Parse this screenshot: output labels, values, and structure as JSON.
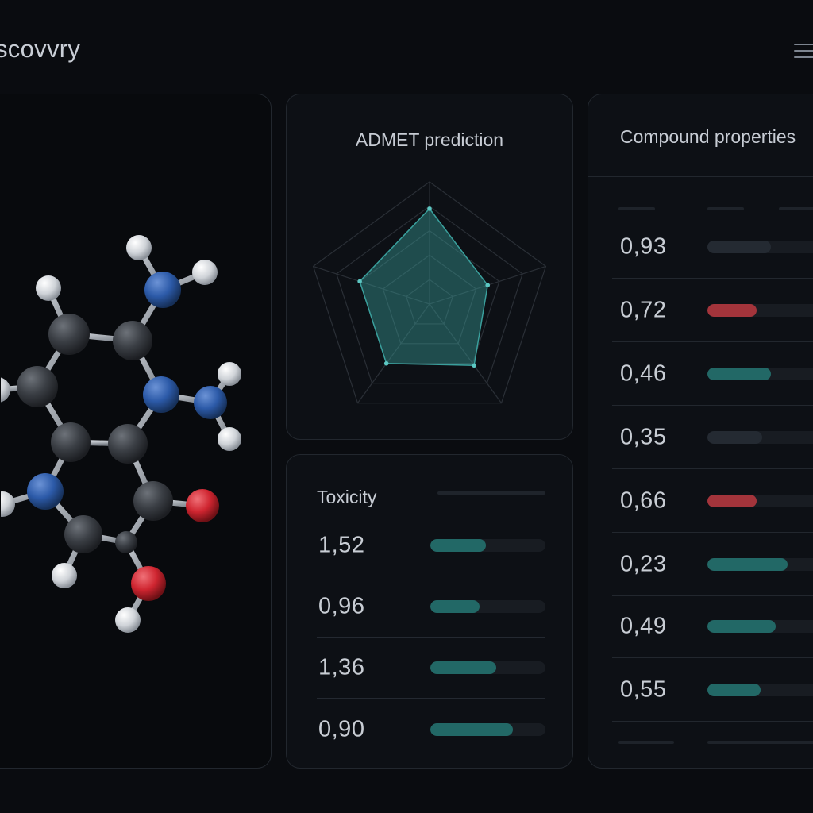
{
  "app": {
    "title": "scovvry"
  },
  "header": {
    "menu_icon": "hamburger-menu-icon"
  },
  "admet": {
    "title": "ADMET prediction",
    "radar_levels": 5,
    "values": [
      0.78,
      0.5,
      0.62,
      0.6,
      0.6
    ],
    "fill_color": "#3a9f9c"
  },
  "toxicity": {
    "title": "Toxicity",
    "rows": [
      {
        "value": "1,52",
        "level": 0.48,
        "color": "#226866"
      },
      {
        "value": "0,96",
        "level": 0.43,
        "color": "#226866"
      },
      {
        "value": "1,36",
        "level": 0.57,
        "color": "#226866"
      },
      {
        "value": "0,90",
        "level": 0.72,
        "color": "#226866"
      }
    ]
  },
  "properties": {
    "title": "Compound properties",
    "rows": [
      {
        "value": "0,93",
        "level": 0.5,
        "color": "#242a32"
      },
      {
        "value": "0,72",
        "level": 0.39,
        "color": "#a3343b"
      },
      {
        "value": "0,46",
        "level": 0.5,
        "color": "#226866"
      },
      {
        "value": "0,35",
        "level": 0.43,
        "color": "#242a32"
      },
      {
        "value": "0,66",
        "level": 0.39,
        "color": "#a3343b"
      },
      {
        "value": "0,23",
        "level": 0.63,
        "color": "#226866"
      },
      {
        "value": "0,49",
        "level": 0.54,
        "color": "#226866"
      },
      {
        "value": "0,55",
        "level": 0.42,
        "color": "#226866"
      }
    ]
  },
  "colors": {
    "background": "#0a0c10",
    "panel": "#0d1015",
    "carbon": "#3c4046",
    "nitrogen": "#2f5fb0",
    "oxygen": "#d0262f",
    "hydrogen": "#d9dde2",
    "teal": "#226866",
    "red": "#a3343b"
  }
}
